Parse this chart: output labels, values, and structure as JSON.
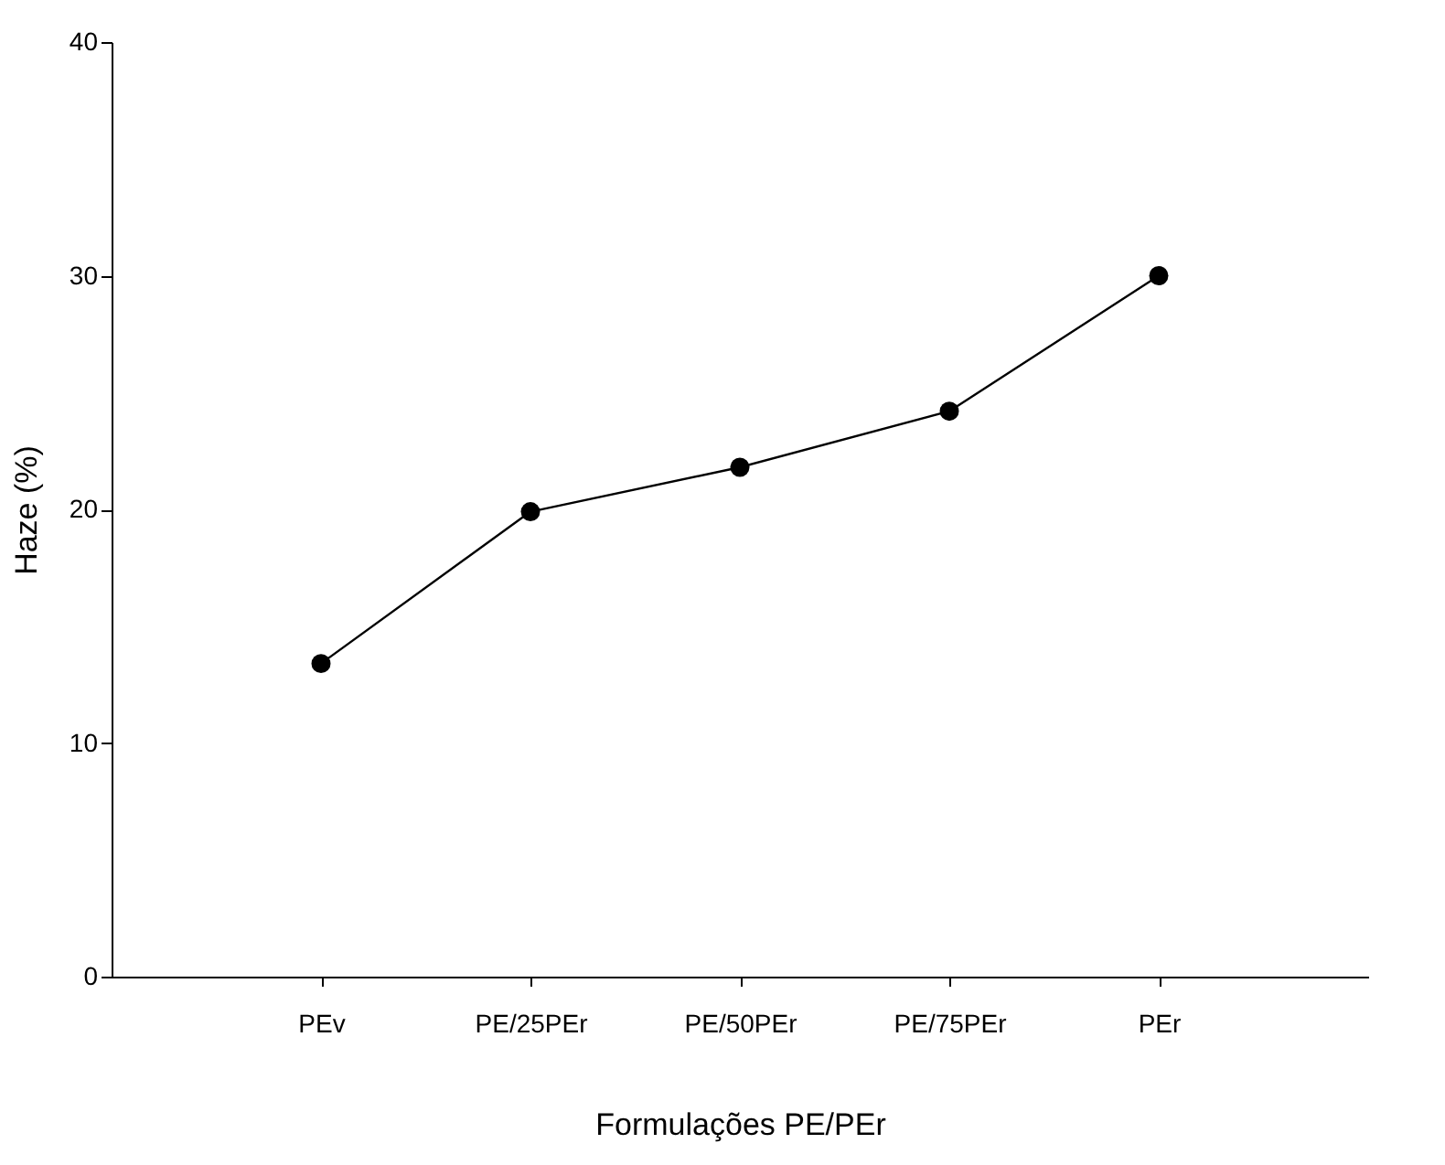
{
  "chart_data": {
    "type": "line",
    "xlabel": "Formulações PE/PEr",
    "ylabel": "Haze (%)",
    "categories": [
      "PEv",
      "PE/25PEr",
      "PE/50PEr",
      "PE/75PEr",
      "PEr"
    ],
    "series": [
      {
        "color": "#000000",
        "values": [
          13.4,
          19.9,
          21.8,
          24.2,
          30.0
        ]
      }
    ],
    "ylim": [
      0,
      40
    ],
    "yticks": [
      0,
      10,
      20,
      30,
      40
    ],
    "marker": "circle",
    "line_style": "solid",
    "grid": false
  }
}
